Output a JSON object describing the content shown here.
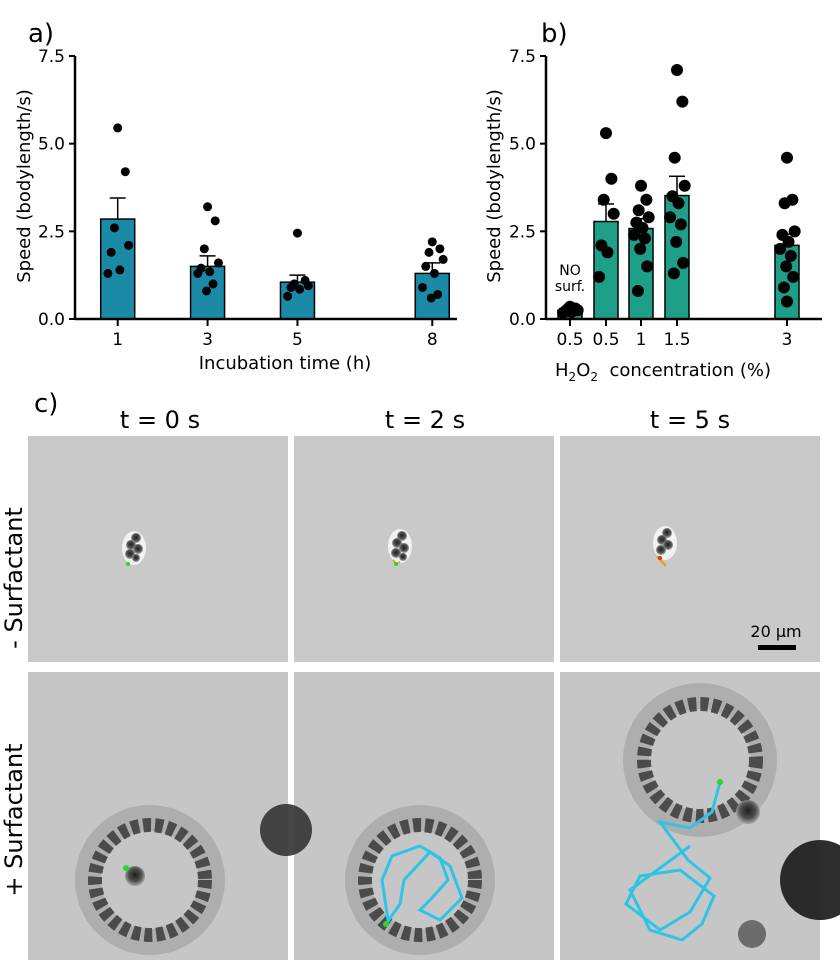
{
  "panels": {
    "a": "a)",
    "b": "b)",
    "c": "c)"
  },
  "colors": {
    "bar_a": "#1b8aa6",
    "bar_b": "#1ea088",
    "point": "#000000",
    "track": "#2ec4e8",
    "tip_green": "#2fd12f",
    "tip_orange": "#f0a020",
    "micrograph_bg": "#c8c8c8"
  },
  "chart_data": [
    {
      "type": "bar",
      "panel": "a)",
      "xlabel": "Incubation time (h)",
      "ylabel": "Speed  (bodylength/s)",
      "ylim": [
        0,
        7.5
      ],
      "yticks": [
        "0.0",
        "2.5",
        "5.0",
        "7.5"
      ],
      "categories": [
        "1",
        "3",
        "5",
        "8"
      ],
      "category_positions": [
        1,
        3,
        5,
        8
      ],
      "values": [
        2.85,
        1.5,
        1.05,
        1.3
      ],
      "errors": [
        0.6,
        0.3,
        0.2,
        0.3
      ],
      "points": [
        [
          5.45,
          4.2,
          2.6,
          2.1,
          1.9,
          1.4,
          1.3
        ],
        [
          3.2,
          2.8,
          2.0,
          1.6,
          1.45,
          1.35,
          1.3,
          1.0,
          0.8
        ],
        [
          2.45,
          1.1,
          1.0,
          0.95,
          0.9,
          0.85,
          0.65
        ],
        [
          2.2,
          2.0,
          1.9,
          1.7,
          1.5,
          1.3,
          0.9,
          0.7,
          0.6
        ]
      ]
    },
    {
      "type": "bar",
      "panel": "b)",
      "xlabel_parts": [
        "H",
        "2",
        "O",
        "2",
        "  concentration (%)"
      ],
      "ylabel": "Speed  (bodylength/s)",
      "ylim": [
        0,
        7.5
      ],
      "yticks": [
        "0.0",
        "2.5",
        "5.0",
        "7.5"
      ],
      "categories": [
        "0.5",
        "0.5",
        "1",
        "1.5",
        "3"
      ],
      "annotation": [
        "NO",
        "surf."
      ],
      "values": [
        0.25,
        2.78,
        2.58,
        3.52,
        2.1
      ],
      "errors": [
        0.02,
        0.5,
        0.28,
        0.55,
        0.32
      ],
      "points": [
        [
          0.35,
          0.3,
          0.28,
          0.25,
          0.22,
          0.2,
          0.18
        ],
        [
          5.3,
          4.0,
          3.4,
          3.0,
          2.1,
          1.9,
          1.2
        ],
        [
          3.8,
          3.4,
          3.1,
          2.9,
          2.75,
          2.6,
          2.4,
          2.3,
          2.0,
          1.5,
          0.8
        ],
        [
          7.1,
          6.2,
          4.6,
          3.8,
          3.5,
          3.3,
          2.9,
          2.7,
          2.2,
          1.6,
          1.3
        ],
        [
          4.6,
          3.4,
          3.3,
          2.5,
          2.4,
          2.2,
          2.0,
          1.8,
          1.5,
          1.2,
          0.9,
          0.5
        ]
      ]
    }
  ],
  "micrographs": {
    "time_labels": [
      "t = 0 s",
      "t = 2 s",
      "t = 5 s"
    ],
    "row_labels": [
      "- Surfactant",
      "+ Surfactant"
    ],
    "scale_bar": "20 μm"
  }
}
